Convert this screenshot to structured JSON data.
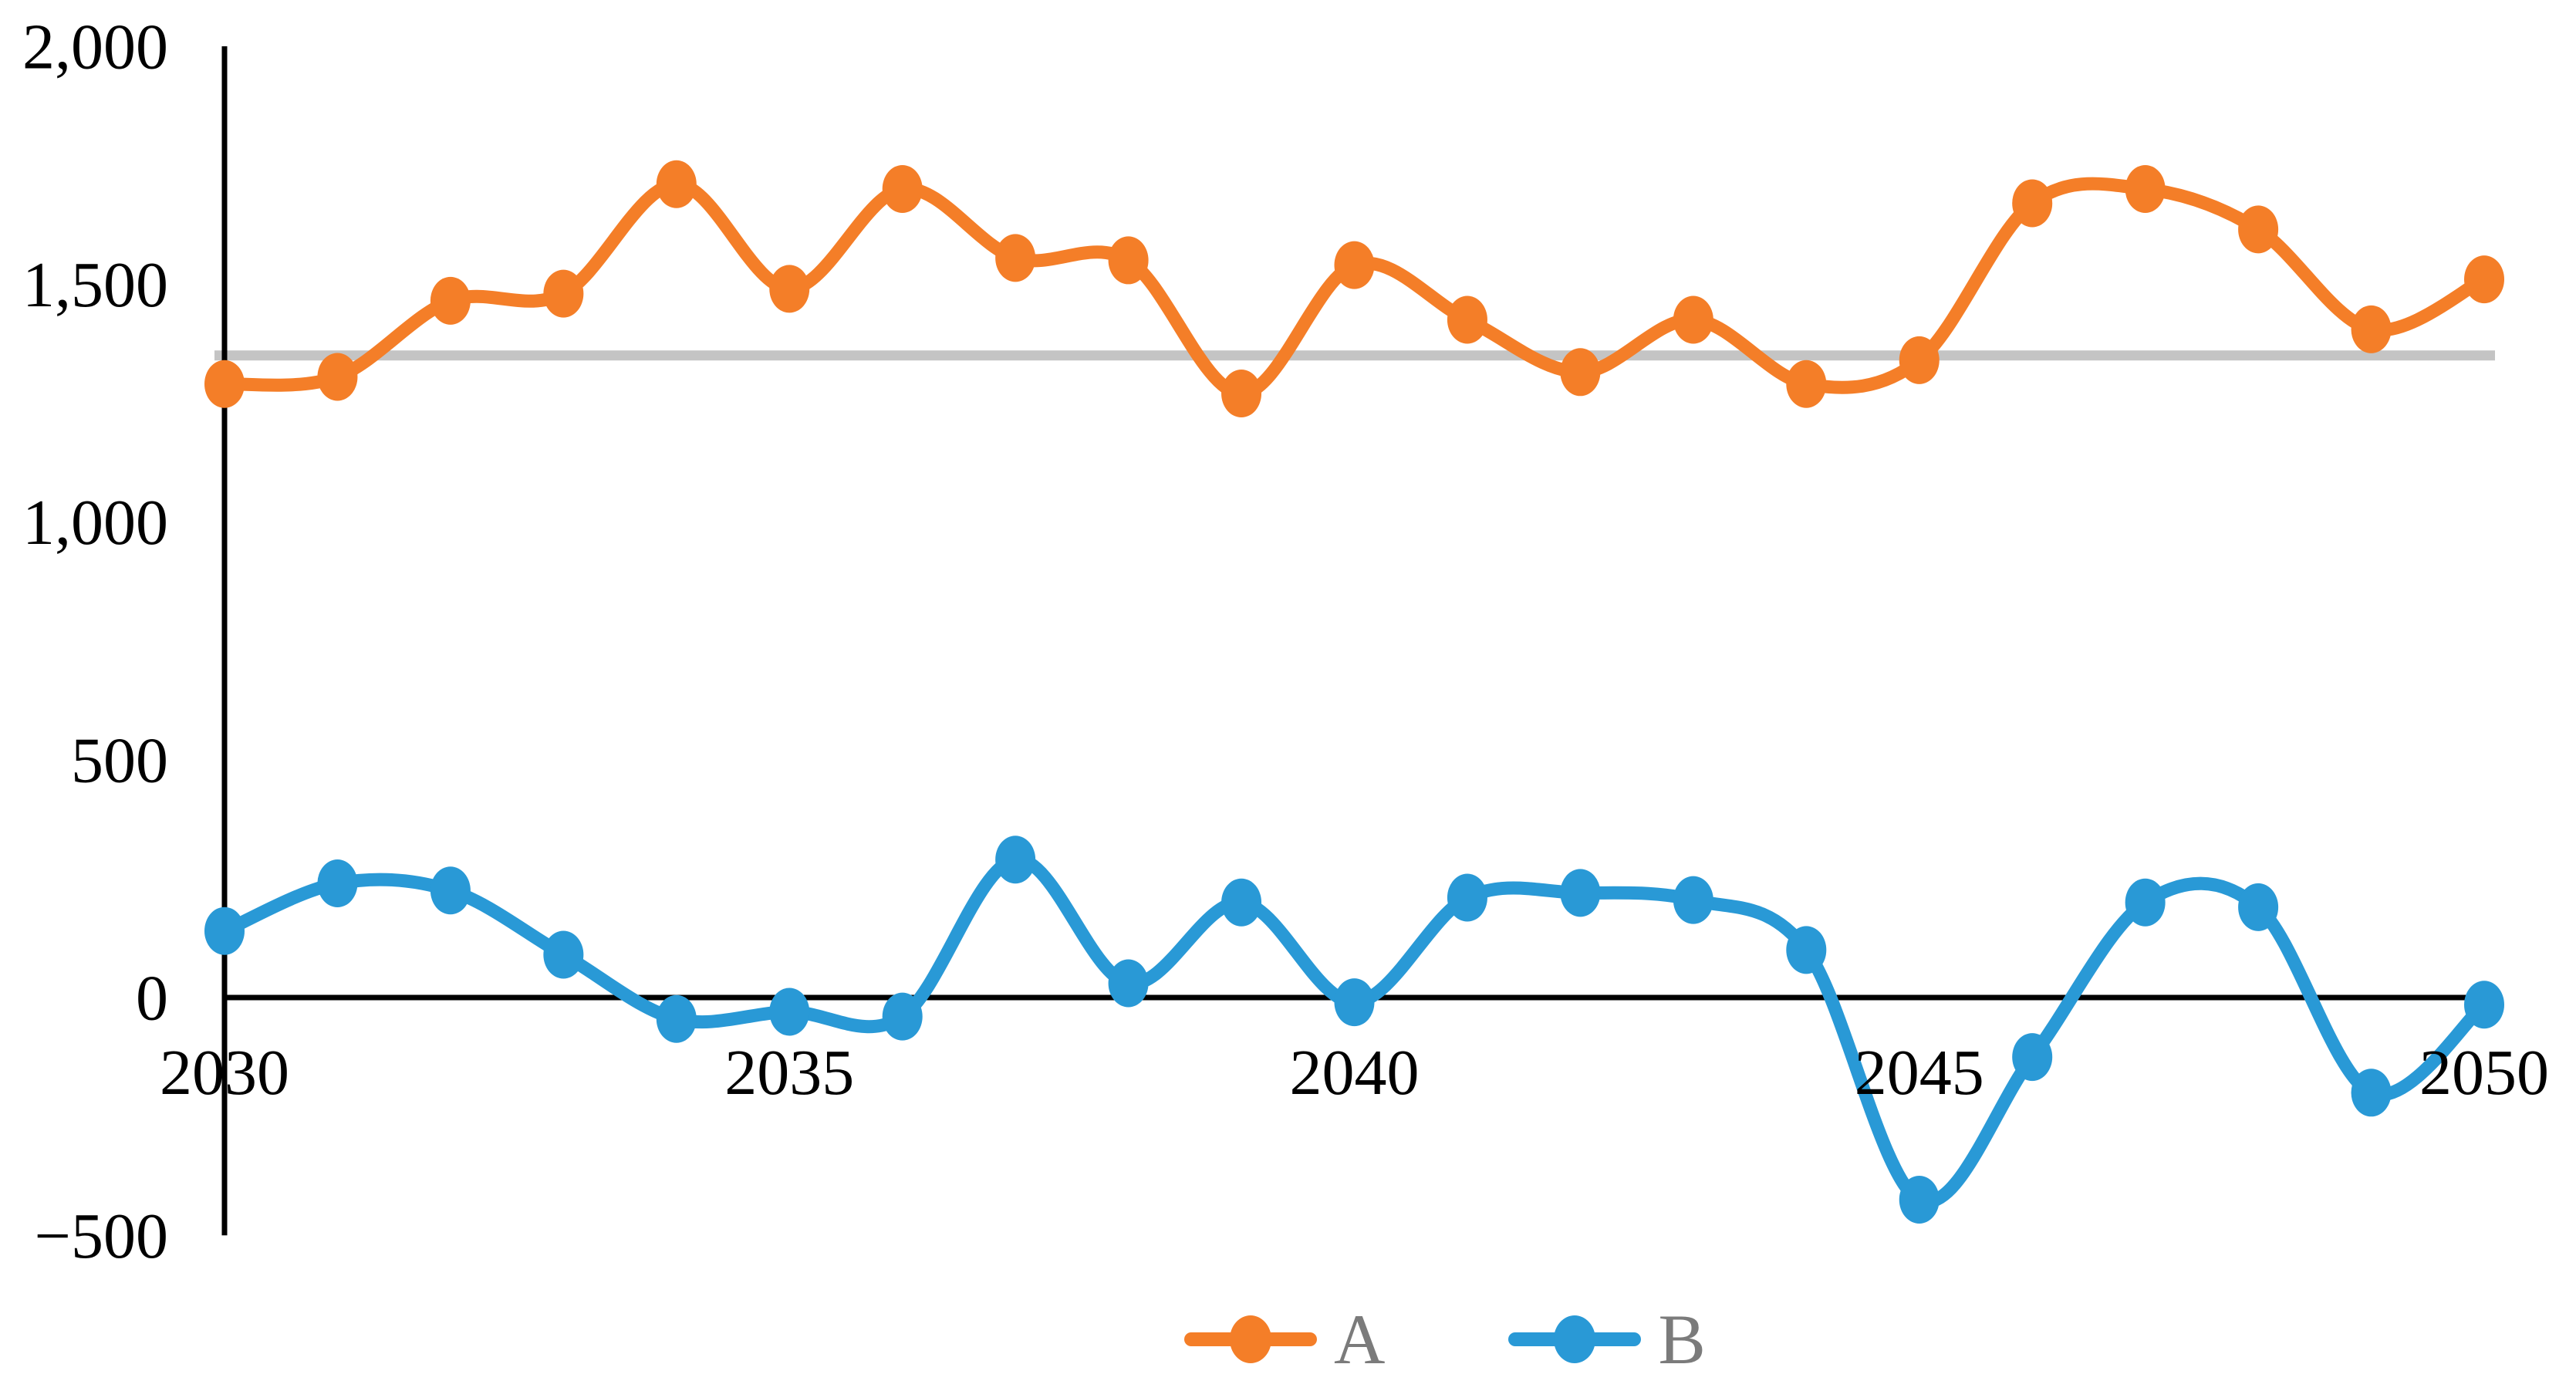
{
  "chart_data": {
    "type": "line",
    "smooth": true,
    "title": "",
    "xlabel": "",
    "ylabel": "",
    "x": [
      2030,
      2031,
      2032,
      2033,
      2034,
      2035,
      2036,
      2037,
      2038,
      2039,
      2040,
      2041,
      2042,
      2043,
      2044,
      2045,
      2046,
      2047,
      2048,
      2049,
      2050
    ],
    "series": [
      {
        "name": "A",
        "color": "#F47E28",
        "values": [
          1290,
          1305,
          1465,
          1480,
          1710,
          1490,
          1700,
          1555,
          1550,
          1270,
          1540,
          1425,
          1315,
          1425,
          1290,
          1340,
          1670,
          1700,
          1615,
          1405,
          1510
        ]
      },
      {
        "name": "B",
        "color": "#2999D6",
        "values": [
          140,
          240,
          225,
          90,
          -45,
          -30,
          -40,
          290,
          30,
          200,
          -10,
          210,
          220,
          205,
          100,
          -425,
          -125,
          200,
          190,
          -200,
          -15
        ]
      }
    ],
    "reference_line": {
      "value": 1350,
      "color": "#C4C4C4"
    },
    "ylim": [
      -500,
      2000
    ],
    "xlim": [
      2030,
      2050
    ],
    "grid": false,
    "legend_position": "bottom",
    "y_axis": {
      "color": "#000000",
      "ticks": [
        {
          "label": "2,000",
          "value": 2000
        },
        {
          "label": "1,500",
          "value": 1500
        },
        {
          "label": "1,000",
          "value": 1000
        },
        {
          "label": "500",
          "value": 500
        },
        {
          "label": "0",
          "value": 0
        },
        {
          "label": "−500",
          "value": -500
        }
      ]
    },
    "x_axis": {
      "color": "#000000",
      "ticks": [
        {
          "label": "2030",
          "value": 2030
        },
        {
          "label": "2035",
          "value": 2035
        },
        {
          "label": "2040",
          "value": 2040
        },
        {
          "label": "2045",
          "value": 2045
        },
        {
          "label": "2050",
          "value": 2050
        }
      ]
    },
    "legend": {
      "entries": [
        {
          "label": "A",
          "color": "#F47E28"
        },
        {
          "label": "B",
          "color": "#2999D6"
        }
      ],
      "text_color": "#7b7b7b"
    },
    "background_color": "#FFFFFF"
  }
}
